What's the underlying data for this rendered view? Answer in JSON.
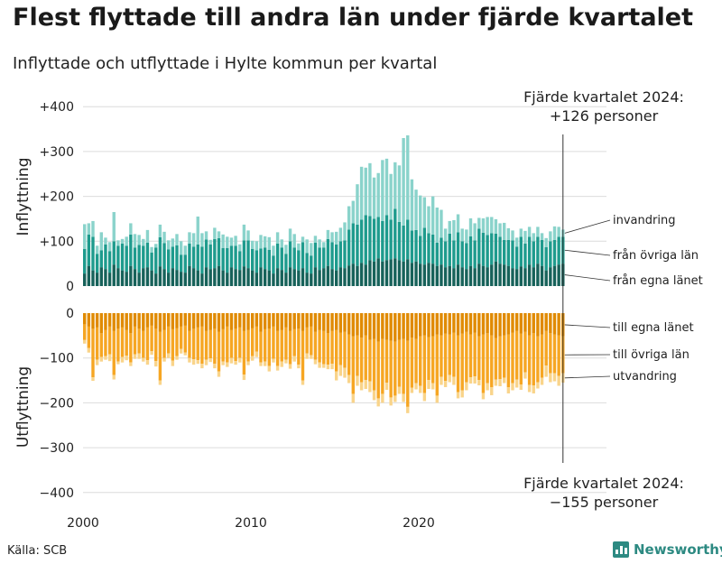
{
  "title": "Flest flyttade till andra län under fjärde kvartalet",
  "subtitle": "Inflyttade och utflyttade i Hylte kommun per kvartal",
  "source": "Källa: SCB",
  "brand": "Newsworthy",
  "icons": {
    "logo": "bar-chart-icon"
  },
  "colors": {
    "in_local": "#17625a",
    "in_county": "#1e9b8d",
    "in_immig": "#8ad3cb",
    "out_local": "#e08a00",
    "out_county": "#f6a623",
    "out_emig": "#f9d48a",
    "brand": "#2d8a82"
  },
  "chart_data": {
    "type": "bar",
    "stacked": true,
    "start_year": 2000,
    "quarters_per_year": 4,
    "y_ticks_in": [
      "+400",
      "+300",
      "+200",
      "+100",
      "0"
    ],
    "y_ticks_out": [
      "0",
      "−100",
      "−200",
      "−300",
      "−400"
    ],
    "ylim_in": [
      0,
      400
    ],
    "ylim_out": [
      -400,
      0
    ],
    "x_ticks": [
      "2000",
      "2010",
      "2020"
    ],
    "ylabel_in": "Inflyttning",
    "ylabel_out": "Utflyttning",
    "annotation_in": {
      "line1": "Fjärde kvartalet 2024:",
      "line2": "+126 personer"
    },
    "annotation_out": {
      "line1": "Fjärde kvartalet 2024:",
      "line2": "−155 personer"
    },
    "in_series": [
      {
        "name": "från egna länet",
        "values": [
          28,
          45,
          35,
          30,
          42,
          38,
          30,
          48,
          40,
          35,
          32,
          45,
          38,
          30,
          40,
          42,
          35,
          28,
          44,
          38,
          30,
          40,
          36,
          32,
          30,
          45,
          40,
          35,
          28,
          42,
          38,
          40,
          45,
          35,
          30,
          42,
          38,
          36,
          44,
          40,
          35,
          30,
          42,
          38,
          35,
          28,
          40,
          36,
          30,
          42,
          38,
          35,
          40,
          30,
          28,
          42,
          36,
          40,
          45,
          38,
          35,
          42,
          40,
          46,
          50,
          45,
          52,
          48,
          58,
          55,
          62,
          55,
          58,
          60,
          62,
          58,
          55,
          60,
          52,
          55,
          50,
          48,
          52,
          50,
          45,
          48,
          42,
          45,
          40,
          48,
          42,
          38,
          45,
          40,
          50,
          45,
          42,
          48,
          55,
          50,
          48,
          45,
          40,
          38,
          44,
          40,
          48,
          42,
          50,
          45,
          35,
          42,
          45,
          48,
          50
        ]
      },
      {
        "name": "från övriga län",
        "values": [
          55,
          70,
          75,
          42,
          38,
          55,
          48,
          52,
          50,
          60,
          58,
          70,
          48,
          62,
          50,
          55,
          40,
          58,
          65,
          58,
          52,
          48,
          55,
          38,
          40,
          50,
          48,
          58,
          60,
          62,
          55,
          65,
          62,
          50,
          55,
          48,
          52,
          42,
          58,
          62,
          48,
          50,
          42,
          48,
          46,
          40,
          55,
          50,
          42,
          58,
          48,
          45,
          58,
          44,
          40,
          55,
          50,
          46,
          60,
          60,
          58,
          58,
          62,
          80,
          90,
          92,
          96,
          110,
          98,
          95,
          92,
          90,
          100,
          88,
          110,
          85,
          80,
          88,
          72,
          70,
          62,
          82,
          66,
          65,
          52,
          60,
          58,
          72,
          62,
          72,
          58,
          58,
          66,
          62,
          78,
          74,
          72,
          70,
          62,
          60,
          55,
          58,
          62,
          50,
          66,
          55,
          62,
          58,
          60,
          58,
          52,
          58,
          58,
          62,
          60
        ]
      },
      {
        "name": "invandring",
        "values": [
          55,
          25,
          35,
          18,
          40,
          15,
          20,
          65,
          12,
          10,
          20,
          25,
          30,
          22,
          15,
          28,
          12,
          8,
          28,
          25,
          20,
          18,
          25,
          30,
          20,
          25,
          30,
          62,
          30,
          18,
          10,
          25,
          15,
          30,
          25,
          18,
          22,
          15,
          35,
          22,
          18,
          20,
          30,
          25,
          28,
          22,
          25,
          18,
          20,
          28,
          30,
          15,
          12,
          30,
          28,
          15,
          18,
          12,
          20,
          22,
          28,
          30,
          40,
          52,
          50,
          90,
          118,
          106,
          118,
          92,
          98,
          136,
          126,
          102,
          104,
          126,
          195,
          188,
          114,
          90,
          90,
          68,
          60,
          85,
          78,
          62,
          28,
          28,
          45,
          40,
          28,
          30,
          40,
          38,
          24,
          32,
          40,
          36,
          32,
          30,
          38,
          26,
          22,
          20,
          18,
          28,
          22,
          18,
          22,
          15,
          20,
          22,
          30,
          22,
          16
        ]
      }
    ],
    "out_series": [
      {
        "name": "till egna länet",
        "values": [
          -25,
          -30,
          -35,
          -32,
          -45,
          -38,
          -30,
          -40,
          -35,
          -32,
          -38,
          -45,
          -30,
          -35,
          -40,
          -32,
          -28,
          -35,
          -42,
          -38,
          -30,
          -36,
          -34,
          -30,
          -28,
          -40,
          -35,
          -32,
          -30,
          -40,
          -38,
          -35,
          -42,
          -36,
          -30,
          -38,
          -35,
          -32,
          -40,
          -38,
          -34,
          -30,
          -42,
          -36,
          -35,
          -30,
          -40,
          -38,
          -32,
          -40,
          -36,
          -35,
          -40,
          -32,
          -30,
          -42,
          -38,
          -40,
          -45,
          -40,
          -38,
          -44,
          -42,
          -48,
          -52,
          -50,
          -55,
          -50,
          -60,
          -58,
          -64,
          -58,
          -60,
          -62,
          -64,
          -60,
          -58,
          -62,
          -55,
          -58,
          -52,
          -50,
          -54,
          -52,
          -48,
          -50,
          -46,
          -48,
          -44,
          -50,
          -46,
          -42,
          -48,
          -44,
          -52,
          -48,
          -45,
          -50,
          -56,
          -52,
          -50,
          -48,
          -44,
          -40,
          -46,
          -42,
          -50,
          -45,
          -52,
          -48,
          -40,
          -45,
          -48,
          -50,
          -52
        ]
      },
      {
        "name": "till övriga län",
        "values": [
          -35,
          -48,
          -108,
          -72,
          -53,
          -58,
          -62,
          -98,
          -73,
          -66,
          -57,
          -65,
          -62,
          -55,
          -60,
          -73,
          -57,
          -72,
          -108,
          -62,
          -60,
          -70,
          -62,
          -50,
          -60,
          -60,
          -68,
          -73,
          -83,
          -64,
          -63,
          -78,
          -88,
          -72,
          -80,
          -62,
          -72,
          -68,
          -97,
          -70,
          -62,
          -56,
          -68,
          -72,
          -83,
          -72,
          -78,
          -70,
          -72,
          -74,
          -60,
          -80,
          -110,
          -58,
          -64,
          -62,
          -72,
          -74,
          -70,
          -73,
          -92,
          -72,
          -80,
          -90,
          -128,
          -90,
          -99,
          -99,
          -92,
          -114,
          -126,
          -122,
          -95,
          -126,
          -120,
          -104,
          -122,
          -147,
          -111,
          -98,
          -110,
          -128,
          -95,
          -104,
          -136,
          -92,
          -105,
          -90,
          -98,
          -126,
          -126,
          -112,
          -95,
          -97,
          -97,
          -130,
          -111,
          -115,
          -92,
          -95,
          -94,
          -117,
          -112,
          -108,
          -113,
          -90,
          -110,
          -116,
          -102,
          -96,
          -77,
          -89,
          -86,
          -90,
          -82
        ]
      },
      {
        "name": "utvandring",
        "values": [
          -8,
          -10,
          -8,
          -12,
          -10,
          -8,
          -15,
          -10,
          -6,
          -12,
          -10,
          -8,
          -10,
          -12,
          -8,
          -10,
          -8,
          -12,
          -10,
          -8,
          -10,
          -12,
          -8,
          -10,
          -6,
          -10,
          -12,
          -8,
          -10,
          -12,
          -8,
          -10,
          -12,
          -8,
          -10,
          -12,
          -8,
          -10,
          -12,
          -8,
          -10,
          -12,
          -8,
          -10,
          -12,
          -8,
          -10,
          -12,
          -8,
          -10,
          -12,
          -8,
          -10,
          -12,
          -8,
          -10,
          -12,
          -8,
          -10,
          -12,
          -20,
          -24,
          -22,
          -18,
          -20,
          -22,
          -18,
          -20,
          -24,
          -22,
          -18,
          -20,
          -16,
          -18,
          -14,
          -16,
          -18,
          -14,
          -12,
          -14,
          -16,
          -18,
          -20,
          -14,
          -16,
          -18,
          -14,
          -16,
          -18,
          -14,
          -16,
          -18,
          -14,
          -16,
          -12,
          -14,
          -16,
          -18,
          -14,
          -16,
          -12,
          -14,
          -16,
          -18,
          -12,
          -14,
          -16,
          -18,
          -14,
          -16,
          -25,
          -20,
          -18,
          -22,
          -21
        ]
      }
    ]
  }
}
